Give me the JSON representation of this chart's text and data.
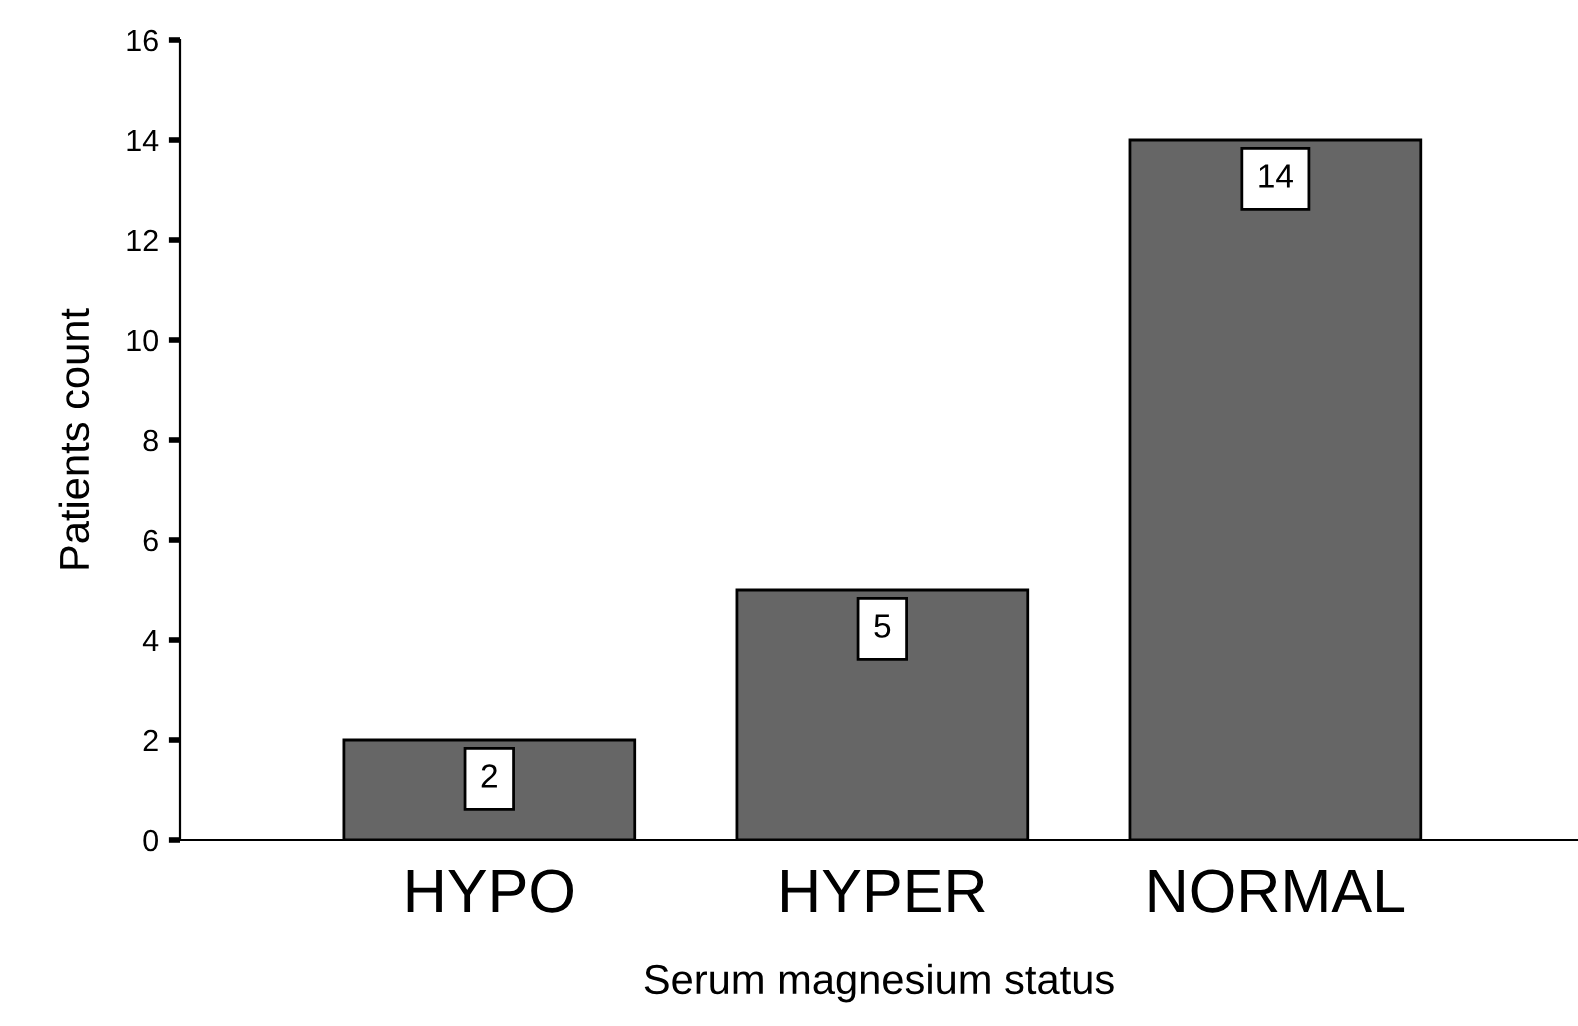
{
  "chart_data": {
    "type": "bar",
    "xlabel": "Serum magnesium status",
    "ylabel": "Patients count",
    "categories": [
      "HYPO",
      "HYPER",
      "NORMAL"
    ],
    "values": [
      2,
      5,
      14
    ],
    "color": "#666666",
    "ylim": [
      0,
      16
    ],
    "yticks": [
      0,
      2,
      4,
      6,
      8,
      10,
      12,
      14,
      16
    ],
    "data_labels": true,
    "grid": false,
    "legend": false
  }
}
